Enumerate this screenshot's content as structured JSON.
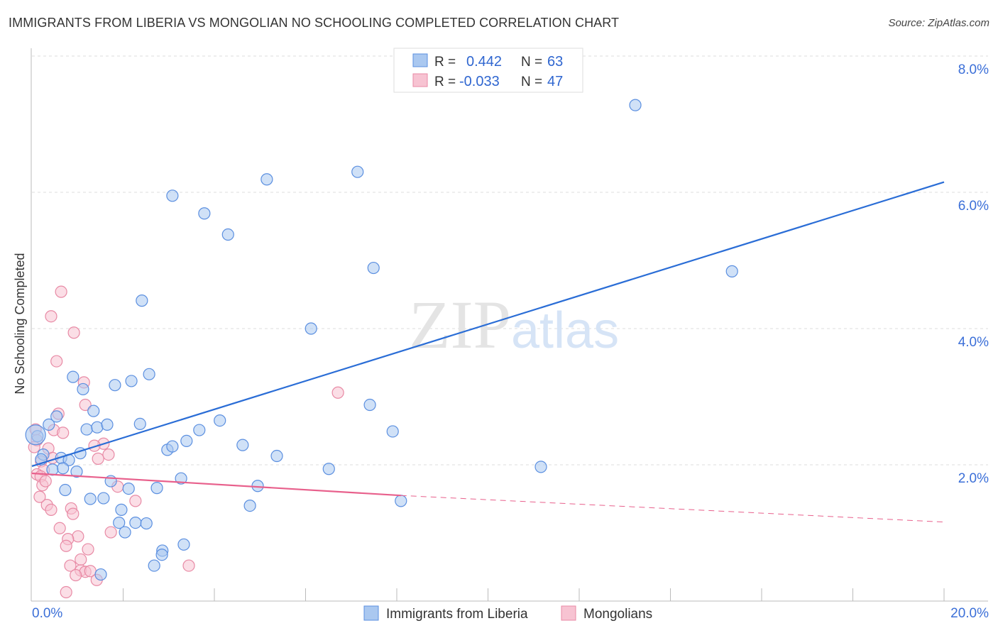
{
  "title": "IMMIGRANTS FROM LIBERIA VS MONGOLIAN NO SCHOOLING COMPLETED CORRELATION CHART",
  "source": "Source: ZipAtlas.com",
  "watermark": "ZIPatlas",
  "chart_data": {
    "type": "scatter",
    "title": "IMMIGRANTS FROM LIBERIA VS MONGOLIAN NO SCHOOLING COMPLETED CORRELATION CHART",
    "xlabel": "",
    "ylabel": "No Schooling Completed",
    "xlim": [
      0,
      20
    ],
    "ylim": [
      0,
      8
    ],
    "x_tick_labels": [
      "0.0%",
      "20.0%"
    ],
    "y_ticks": [
      2,
      4,
      6,
      8
    ],
    "y_tick_labels": [
      "2.0%",
      "4.0%",
      "6.0%",
      "8.0%"
    ],
    "grid": true,
    "legend_placement": "top-center",
    "stats": [
      {
        "r_label": "R =",
        "r": "0.442",
        "n_label": "N =",
        "n": "63"
      },
      {
        "r_label": "R =",
        "r": "-0.033",
        "n_label": "N =",
        "n": "47"
      }
    ],
    "series": [
      {
        "name": "Immigrants from Liberia",
        "color": "#5b8fe0",
        "fill": "#aac8f0",
        "line_color": "#2a6dd6",
        "trend": {
          "x": [
            0,
            20
          ],
          "y": [
            1.98,
            6.15
          ]
        },
        "points": [
          [
            13.23,
            7.28
          ],
          [
            5.15,
            6.19
          ],
          [
            7.14,
            6.3
          ],
          [
            3.08,
            5.95
          ],
          [
            3.78,
            5.69
          ],
          [
            4.3,
            5.38
          ],
          [
            7.49,
            4.89
          ],
          [
            15.35,
            4.84
          ],
          [
            2.41,
            4.41
          ],
          [
            6.12,
            4.0
          ],
          [
            0.9,
            3.29
          ],
          [
            1.12,
            3.11
          ],
          [
            1.82,
            3.17
          ],
          [
            2.18,
            3.23
          ],
          [
            2.57,
            3.33
          ],
          [
            1.35,
            2.79
          ],
          [
            0.54,
            2.71
          ],
          [
            0.37,
            2.59
          ],
          [
            1.2,
            2.52
          ],
          [
            1.43,
            2.55
          ],
          [
            1.65,
            2.59
          ],
          [
            2.37,
            2.6
          ],
          [
            4.12,
            2.65
          ],
          [
            3.67,
            2.51
          ],
          [
            3.39,
            2.35
          ],
          [
            2.97,
            2.22
          ],
          [
            3.08,
            2.27
          ],
          [
            7.41,
            2.88
          ],
          [
            7.91,
            2.49
          ],
          [
            4.62,
            2.29
          ],
          [
            5.37,
            2.13
          ],
          [
            6.51,
            1.94
          ],
          [
            11.16,
            1.97
          ],
          [
            0.12,
            2.42
          ],
          [
            0.25,
            2.15
          ],
          [
            0.64,
            2.1
          ],
          [
            0.81,
            2.07
          ],
          [
            1.06,
            2.17
          ],
          [
            0.2,
            2.08
          ],
          [
            0.45,
            1.93
          ],
          [
            0.68,
            1.95
          ],
          [
            0.98,
            1.9
          ],
          [
            1.73,
            1.76
          ],
          [
            3.27,
            1.8
          ],
          [
            2.12,
            1.65
          ],
          [
            2.74,
            1.66
          ],
          [
            0.73,
            1.63
          ],
          [
            4.95,
            1.69
          ],
          [
            1.28,
            1.5
          ],
          [
            1.57,
            1.51
          ],
          [
            4.78,
            1.4
          ],
          [
            8.09,
            1.47
          ],
          [
            1.96,
            1.34
          ],
          [
            1.91,
            1.15
          ],
          [
            2.27,
            1.15
          ],
          [
            2.51,
            1.14
          ],
          [
            2.04,
            1.01
          ],
          [
            3.33,
            0.83
          ],
          [
            2.86,
            0.74
          ],
          [
            2.85,
            0.68
          ],
          [
            2.68,
            0.52
          ],
          [
            1.51,
            0.39
          ],
          [
            0.08,
            2.44
          ]
        ]
      },
      {
        "name": "Mongolians",
        "color": "#e88aa5",
        "fill": "#f7c3d2",
        "line_color": "#e8608c",
        "trend": {
          "x": [
            0,
            8.09
          ],
          "y": [
            1.875,
            1.55
          ]
        },
        "trend_dashed": {
          "x": [
            8.09,
            20
          ],
          "y": [
            1.55,
            1.16
          ]
        },
        "points": [
          [
            0.64,
            4.54
          ],
          [
            0.42,
            4.18
          ],
          [
            0.92,
            3.94
          ],
          [
            0.54,
            3.52
          ],
          [
            1.14,
            3.21
          ],
          [
            6.71,
            3.06
          ],
          [
            1.17,
            2.88
          ],
          [
            0.58,
            2.75
          ],
          [
            0.48,
            2.51
          ],
          [
            0.68,
            2.47
          ],
          [
            0.08,
            2.52
          ],
          [
            0.36,
            2.24
          ],
          [
            1.57,
            2.31
          ],
          [
            1.37,
            2.28
          ],
          [
            1.68,
            2.15
          ],
          [
            0.45,
            2.1
          ],
          [
            1.45,
            2.09
          ],
          [
            0.2,
            2.05
          ],
          [
            0.26,
            1.92
          ],
          [
            0.11,
            1.86
          ],
          [
            0.19,
            1.83
          ],
          [
            0.23,
            1.7
          ],
          [
            0.3,
            1.76
          ],
          [
            1.88,
            1.68
          ],
          [
            2.27,
            1.47
          ],
          [
            0.33,
            1.41
          ],
          [
            0.42,
            1.34
          ],
          [
            0.86,
            1.36
          ],
          [
            0.9,
            1.28
          ],
          [
            0.61,
            1.07
          ],
          [
            1.01,
            0.95
          ],
          [
            0.79,
            0.91
          ],
          [
            0.75,
            0.81
          ],
          [
            1.23,
            0.76
          ],
          [
            1.07,
            0.61
          ],
          [
            0.84,
            0.52
          ],
          [
            1.07,
            0.45
          ],
          [
            1.17,
            0.43
          ],
          [
            1.28,
            0.44
          ],
          [
            0.96,
            0.38
          ],
          [
            1.42,
            0.31
          ],
          [
            3.44,
            0.52
          ],
          [
            0.75,
            0.13
          ],
          [
            1.73,
            1.01
          ],
          [
            0.11,
            2.36
          ],
          [
            0.05,
            2.26
          ],
          [
            0.17,
            1.53
          ]
        ]
      }
    ]
  }
}
